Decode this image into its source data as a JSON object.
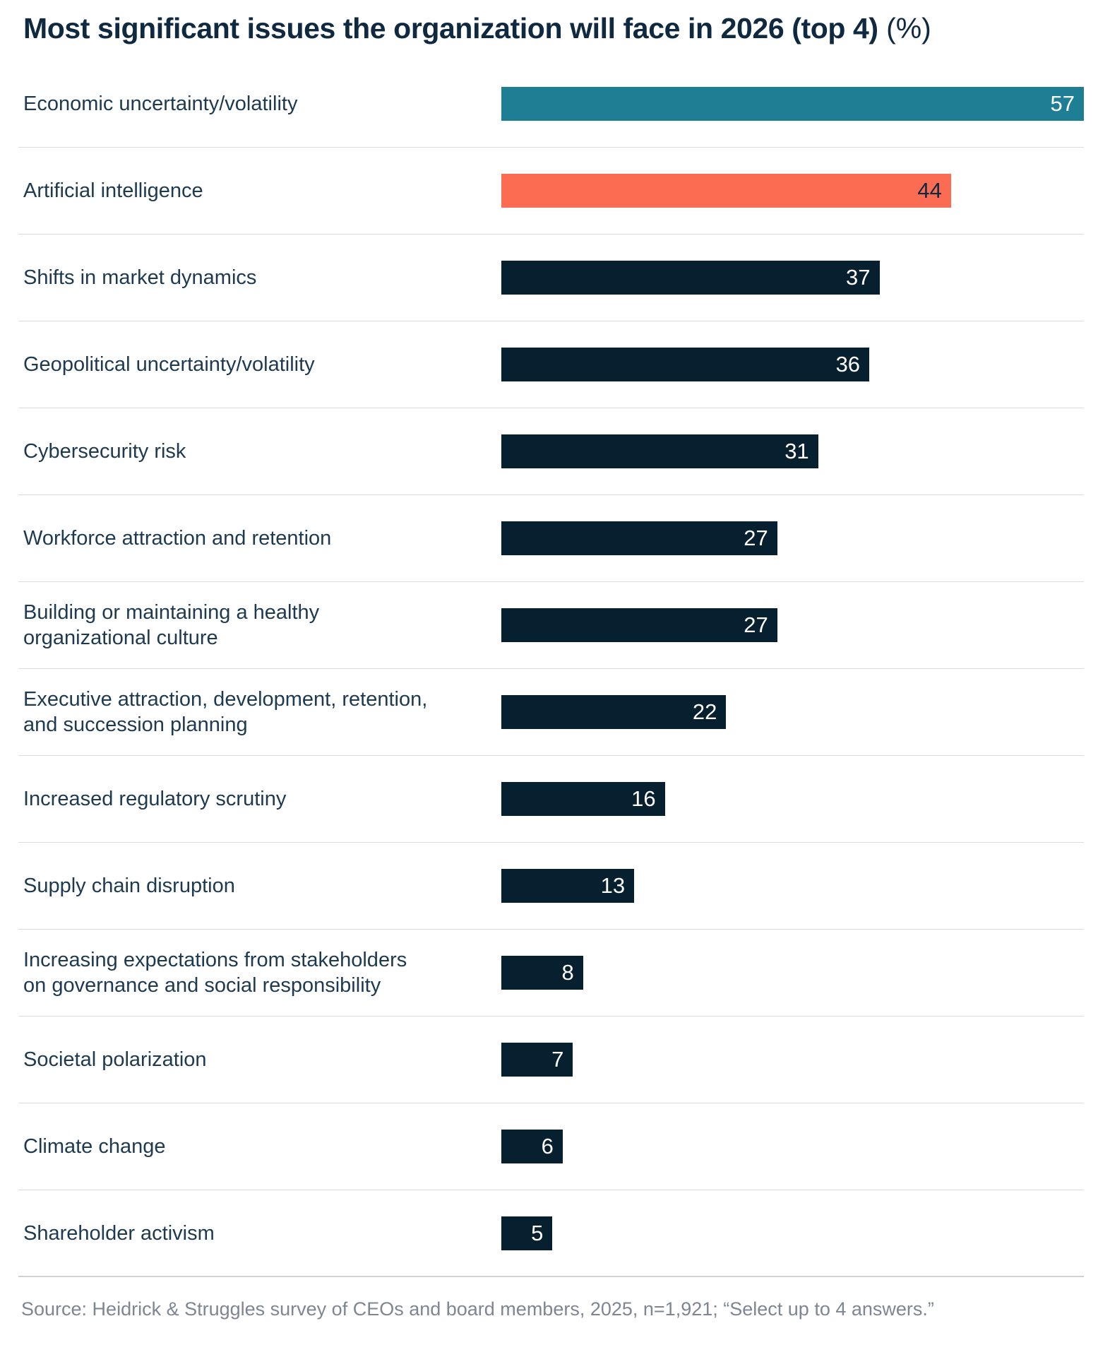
{
  "title": {
    "bold": "Most significant issues the organization will face in 2026 (top 4)",
    "suffix": " (%)"
  },
  "source": "Source: Heidrick & Struggles survey of CEOs and board members, 2025, n=1,921; “Select up to 4 answers.”",
  "colors": {
    "teal": "#1E7F94",
    "coral": "#FC6C53",
    "navy": "#07202F",
    "title_text": "#0F2940",
    "label_text": "#1D3A51",
    "divider": "#DADBDD",
    "source_text": "#7E8694"
  },
  "chart_data": {
    "type": "bar",
    "orientation": "horizontal",
    "title": "Most significant issues the organization will face in 2026 (top 4) (%)",
    "xlabel": "",
    "ylabel": "",
    "legend": false,
    "grid": false,
    "axis_max": 57,
    "categories": [
      "Economic uncertainty/volatility",
      "Artificial intelligence",
      "Shifts in market dynamics",
      "Geopolitical uncertainty/volatility",
      "Cybersecurity risk",
      "Workforce attraction and retention",
      "Building or maintaining a healthy organizational culture",
      "Executive attraction, development, retention, and succession planning",
      "Increased regulatory scrutiny",
      "Supply chain disruption",
      "Increasing expectations from stakeholders on governance and social responsibility",
      "Societal polarization",
      "Climate change",
      "Shareholder activism"
    ],
    "values": [
      57,
      44,
      37,
      36,
      31,
      27,
      27,
      22,
      16,
      13,
      8,
      7,
      6,
      5
    ],
    "bar_colors": [
      "#1E7F94",
      "#FC6C53",
      "#07202F",
      "#07202F",
      "#07202F",
      "#07202F",
      "#07202F",
      "#07202F",
      "#07202F",
      "#07202F",
      "#07202F",
      "#07202F",
      "#07202F",
      "#07202F"
    ],
    "value_label_colors": [
      "#FFFFFF",
      "#0F2940",
      "#FFFFFF",
      "#FFFFFF",
      "#FFFFFF",
      "#FFFFFF",
      "#FFFFFF",
      "#FFFFFF",
      "#FFFFFF",
      "#FFFFFF",
      "#FFFFFF",
      "#FFFFFF",
      "#FFFFFF",
      "#FFFFFF"
    ]
  }
}
